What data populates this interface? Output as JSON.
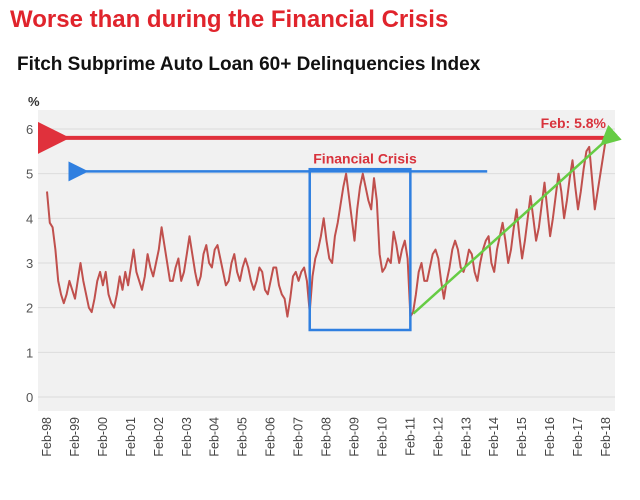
{
  "headline": "Worse than during the Financial Crisis",
  "colors": {
    "headline": "#e0242c",
    "series": "#c0504d",
    "red_arrow": "#e0313c",
    "blue_arrow": "#2f7fe0",
    "box": "#2f7fe0",
    "green_arrow": "#66cc44",
    "panel": "#f1f1f1",
    "grid": "#dcdcdc"
  },
  "chart_data": {
    "type": "line",
    "title": "Fitch Subprime Auto Loan 60+ Delinquencies Index",
    "ylabel": "%",
    "xlabel": "",
    "ylim": [
      0,
      6.3
    ],
    "yticks": [
      0,
      1,
      2,
      3,
      4,
      5,
      6
    ],
    "grid": true,
    "xticks": [
      "Feb-98",
      "Feb-99",
      "Feb-00",
      "Feb-01",
      "Feb-02",
      "Feb-03",
      "Feb-04",
      "Feb-05",
      "Feb-06",
      "Feb-07",
      "Feb-08",
      "Feb-09",
      "Feb-10",
      "Feb-11",
      "Feb-12",
      "Feb-13",
      "Feb-14",
      "Feb-15",
      "Feb-16",
      "Feb-17",
      "Feb-18"
    ],
    "series": [
      {
        "values": [
          [
            1998.0,
            4.6
          ],
          [
            1998.1,
            3.9
          ],
          [
            1998.2,
            3.8
          ],
          [
            1998.3,
            3.3
          ],
          [
            1998.4,
            2.6
          ],
          [
            1998.5,
            2.3
          ],
          [
            1998.6,
            2.1
          ],
          [
            1998.7,
            2.3
          ],
          [
            1998.8,
            2.6
          ],
          [
            1998.9,
            2.4
          ],
          [
            1999.0,
            2.2
          ],
          [
            1999.1,
            2.6
          ],
          [
            1999.2,
            3.0
          ],
          [
            1999.3,
            2.6
          ],
          [
            1999.4,
            2.3
          ],
          [
            1999.5,
            2.0
          ],
          [
            1999.6,
            1.9
          ],
          [
            1999.7,
            2.2
          ],
          [
            1999.8,
            2.6
          ],
          [
            1999.9,
            2.8
          ],
          [
            2000.0,
            2.5
          ],
          [
            2000.1,
            2.8
          ],
          [
            2000.2,
            2.3
          ],
          [
            2000.3,
            2.1
          ],
          [
            2000.4,
            2.0
          ],
          [
            2000.5,
            2.3
          ],
          [
            2000.6,
            2.7
          ],
          [
            2000.7,
            2.4
          ],
          [
            2000.8,
            2.8
          ],
          [
            2000.9,
            2.5
          ],
          [
            2001.0,
            2.9
          ],
          [
            2001.1,
            3.3
          ],
          [
            2001.2,
            2.8
          ],
          [
            2001.3,
            2.6
          ],
          [
            2001.4,
            2.4
          ],
          [
            2001.5,
            2.7
          ],
          [
            2001.6,
            3.2
          ],
          [
            2001.7,
            2.9
          ],
          [
            2001.8,
            2.7
          ],
          [
            2001.9,
            3.0
          ],
          [
            2002.0,
            3.3
          ],
          [
            2002.1,
            3.8
          ],
          [
            2002.2,
            3.4
          ],
          [
            2002.3,
            3.0
          ],
          [
            2002.4,
            2.6
          ],
          [
            2002.5,
            2.6
          ],
          [
            2002.6,
            2.9
          ],
          [
            2002.7,
            3.1
          ],
          [
            2002.8,
            2.6
          ],
          [
            2002.9,
            2.8
          ],
          [
            2003.0,
            3.2
          ],
          [
            2003.1,
            3.6
          ],
          [
            2003.2,
            3.2
          ],
          [
            2003.3,
            2.8
          ],
          [
            2003.4,
            2.5
          ],
          [
            2003.5,
            2.7
          ],
          [
            2003.6,
            3.2
          ],
          [
            2003.7,
            3.4
          ],
          [
            2003.8,
            3.0
          ],
          [
            2003.9,
            2.9
          ],
          [
            2004.0,
            3.3
          ],
          [
            2004.1,
            3.4
          ],
          [
            2004.2,
            3.1
          ],
          [
            2004.3,
            2.8
          ],
          [
            2004.4,
            2.5
          ],
          [
            2004.5,
            2.6
          ],
          [
            2004.6,
            3.0
          ],
          [
            2004.7,
            3.2
          ],
          [
            2004.8,
            2.8
          ],
          [
            2004.9,
            2.6
          ],
          [
            2005.0,
            2.9
          ],
          [
            2005.1,
            3.1
          ],
          [
            2005.2,
            2.9
          ],
          [
            2005.3,
            2.6
          ],
          [
            2005.4,
            2.4
          ],
          [
            2005.5,
            2.6
          ],
          [
            2005.6,
            2.9
          ],
          [
            2005.7,
            2.8
          ],
          [
            2005.8,
            2.4
          ],
          [
            2005.9,
            2.3
          ],
          [
            2006.0,
            2.6
          ],
          [
            2006.1,
            2.9
          ],
          [
            2006.2,
            2.9
          ],
          [
            2006.3,
            2.5
          ],
          [
            2006.4,
            2.3
          ],
          [
            2006.5,
            2.2
          ],
          [
            2006.6,
            1.8
          ],
          [
            2006.7,
            2.2
          ],
          [
            2006.8,
            2.7
          ],
          [
            2006.9,
            2.8
          ],
          [
            2007.0,
            2.6
          ],
          [
            2007.1,
            2.8
          ],
          [
            2007.2,
            2.9
          ],
          [
            2007.3,
            2.6
          ],
          [
            2007.4,
            1.9
          ],
          [
            2007.5,
            2.7
          ],
          [
            2007.6,
            3.1
          ],
          [
            2007.7,
            3.3
          ],
          [
            2007.8,
            3.6
          ],
          [
            2007.9,
            4.0
          ],
          [
            2008.0,
            3.5
          ],
          [
            2008.1,
            3.1
          ],
          [
            2008.2,
            3.0
          ],
          [
            2008.3,
            3.6
          ],
          [
            2008.4,
            3.9
          ],
          [
            2008.5,
            4.3
          ],
          [
            2008.6,
            4.7
          ],
          [
            2008.7,
            5.0
          ],
          [
            2008.8,
            4.5
          ],
          [
            2008.9,
            4.0
          ],
          [
            2009.0,
            3.5
          ],
          [
            2009.1,
            4.2
          ],
          [
            2009.2,
            4.7
          ],
          [
            2009.3,
            5.0
          ],
          [
            2009.4,
            4.7
          ],
          [
            2009.5,
            4.4
          ],
          [
            2009.6,
            4.2
          ],
          [
            2009.7,
            4.9
          ],
          [
            2009.8,
            4.4
          ],
          [
            2009.9,
            3.2
          ],
          [
            2010.0,
            2.8
          ],
          [
            2010.1,
            2.9
          ],
          [
            2010.2,
            3.1
          ],
          [
            2010.3,
            3.0
          ],
          [
            2010.4,
            3.7
          ],
          [
            2010.5,
            3.4
          ],
          [
            2010.6,
            3.0
          ],
          [
            2010.7,
            3.3
          ],
          [
            2010.8,
            3.5
          ],
          [
            2010.9,
            3.1
          ],
          [
            2011.0,
            1.8
          ],
          [
            2011.1,
            1.9
          ],
          [
            2011.2,
            2.3
          ],
          [
            2011.3,
            2.8
          ],
          [
            2011.4,
            3.0
          ],
          [
            2011.5,
            2.6
          ],
          [
            2011.6,
            2.6
          ],
          [
            2011.7,
            2.9
          ],
          [
            2011.8,
            3.2
          ],
          [
            2011.9,
            3.3
          ],
          [
            2012.0,
            3.1
          ],
          [
            2012.1,
            2.6
          ],
          [
            2012.2,
            2.2
          ],
          [
            2012.3,
            2.6
          ],
          [
            2012.4,
            2.9
          ],
          [
            2012.5,
            3.3
          ],
          [
            2012.6,
            3.5
          ],
          [
            2012.7,
            3.3
          ],
          [
            2012.8,
            2.9
          ],
          [
            2012.9,
            2.8
          ],
          [
            2013.0,
            3.0
          ],
          [
            2013.1,
            3.3
          ],
          [
            2013.2,
            3.2
          ],
          [
            2013.3,
            2.8
          ],
          [
            2013.4,
            2.6
          ],
          [
            2013.5,
            3.0
          ],
          [
            2013.6,
            3.3
          ],
          [
            2013.7,
            3.5
          ],
          [
            2013.8,
            3.6
          ],
          [
            2013.9,
            3.0
          ],
          [
            2014.0,
            2.8
          ],
          [
            2014.1,
            3.3
          ],
          [
            2014.2,
            3.6
          ],
          [
            2014.3,
            3.9
          ],
          [
            2014.4,
            3.5
          ],
          [
            2014.5,
            3.0
          ],
          [
            2014.6,
            3.3
          ],
          [
            2014.7,
            3.8
          ],
          [
            2014.8,
            4.2
          ],
          [
            2014.9,
            3.6
          ],
          [
            2015.0,
            3.1
          ],
          [
            2015.1,
            3.5
          ],
          [
            2015.2,
            4.0
          ],
          [
            2015.3,
            4.5
          ],
          [
            2015.4,
            4.0
          ],
          [
            2015.5,
            3.5
          ],
          [
            2015.6,
            3.8
          ],
          [
            2015.7,
            4.3
          ],
          [
            2015.8,
            4.8
          ],
          [
            2015.9,
            4.2
          ],
          [
            2016.0,
            3.6
          ],
          [
            2016.1,
            4.0
          ],
          [
            2016.2,
            4.5
          ],
          [
            2016.3,
            5.0
          ],
          [
            2016.4,
            4.6
          ],
          [
            2016.5,
            4.0
          ],
          [
            2016.6,
            4.4
          ],
          [
            2016.7,
            4.9
          ],
          [
            2016.8,
            5.3
          ],
          [
            2016.9,
            4.7
          ],
          [
            2017.0,
            4.2
          ],
          [
            2017.1,
            4.6
          ],
          [
            2017.2,
            5.1
          ],
          [
            2017.3,
            5.5
          ],
          [
            2017.4,
            5.6
          ],
          [
            2017.5,
            4.9
          ],
          [
            2017.6,
            4.2
          ],
          [
            2017.7,
            4.6
          ],
          [
            2017.8,
            5.0
          ],
          [
            2017.9,
            5.4
          ],
          [
            2018.0,
            5.8
          ]
        ]
      }
    ],
    "annotations": {
      "peak_label": "Feb: 5.8%",
      "crisis_label": "Financial Crisis",
      "peak_value": 5.8,
      "crisis_level": 5.05,
      "box_range": {
        "x": [
          2007.4,
          2011.0
        ],
        "y": [
          1.5,
          5.1
        ]
      },
      "trend_from": [
        2011.0,
        1.8
      ],
      "trend_to": [
        2018.0,
        5.8
      ]
    }
  }
}
